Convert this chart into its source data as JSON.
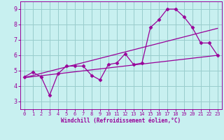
{
  "xlabel": "Windchill (Refroidissement éolien,°C)",
  "xlim": [
    -0.5,
    23.5
  ],
  "ylim": [
    2.5,
    9.5
  ],
  "yticks": [
    3,
    4,
    5,
    6,
    7,
    8,
    9
  ],
  "xticks": [
    0,
    1,
    2,
    3,
    4,
    5,
    6,
    7,
    8,
    9,
    10,
    11,
    12,
    13,
    14,
    15,
    16,
    17,
    18,
    19,
    20,
    21,
    22,
    23
  ],
  "background_color": "#c8f0f0",
  "grid_color": "#99cccc",
  "line_color": "#990099",
  "line1_x": [
    0,
    1,
    2,
    3,
    4,
    5,
    6,
    7,
    8,
    9,
    10,
    11,
    12,
    13,
    14,
    15,
    16,
    17,
    18,
    19,
    20,
    21,
    22,
    23
  ],
  "line1_y": [
    4.6,
    4.9,
    4.6,
    3.4,
    4.8,
    5.3,
    5.3,
    5.3,
    4.7,
    4.4,
    5.4,
    5.5,
    6.1,
    5.4,
    5.5,
    7.8,
    8.3,
    9.0,
    9.0,
    8.5,
    7.8,
    6.8,
    6.8,
    6.0
  ],
  "line2_x": [
    0,
    23
  ],
  "line2_y": [
    4.55,
    6.0
  ],
  "line3_x": [
    0,
    23
  ],
  "line3_y": [
    4.55,
    7.75
  ],
  "marker": "D",
  "markersize": 2.5,
  "xlabel_fontsize": 5.5,
  "tick_fontsize_x": 5,
  "tick_fontsize_y": 6
}
